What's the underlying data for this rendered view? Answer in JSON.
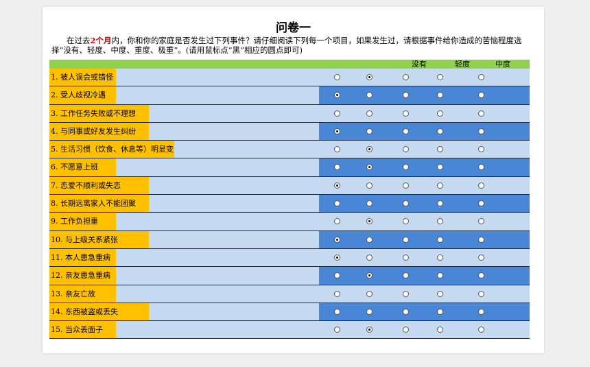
{
  "header": {
    "title": "问卷一",
    "intro": {
      "before": "在过去",
      "highlight": "2个月",
      "after": "内，你和你的家庭是否发生过下列事件？请仔细阅读下列每一个项目，如果发生过，请根据事件给你造成的苦恼程度选择“没有、轻度、中度、重度、极重”。(请用鼠标点“黑”相应的圆点即可)"
    }
  },
  "table": {
    "columns": [
      "没有",
      "轻度",
      "中度"
    ],
    "rows": [
      {
        "label": "1. 被人误会或错怪",
        "selected": 1
      },
      {
        "label": "2. 受人歧视冷遇",
        "selected": 0
      },
      {
        "label": "3. 工作任务失败或不理想",
        "selected": null
      },
      {
        "label": "4. 与同事或好友发生纠纷",
        "selected": 0
      },
      {
        "label": "5. 生活习惯（饮食、休息等）明显变",
        "selected": 1
      },
      {
        "label": "6. 不愿意上班",
        "selected": 1
      },
      {
        "label": "7. 恋爱不顺利或失恋",
        "selected": 0
      },
      {
        "label": "8.  长期远离家人不能团聚",
        "selected": null
      },
      {
        "label": "9.  工作负担重",
        "selected": 1
      },
      {
        "label": "10.  与上级关系紧张",
        "selected": 0
      },
      {
        "label": "11.  本人患急重病",
        "selected": 0
      },
      {
        "label": "12.  亲友患急重病",
        "selected": 1
      },
      {
        "label": "13.  亲友亡故",
        "selected": null
      },
      {
        "label": "14.  东西被盗或丢失",
        "selected": null
      },
      {
        "label": "15.  当众丢面子",
        "selected": 1
      }
    ]
  }
}
